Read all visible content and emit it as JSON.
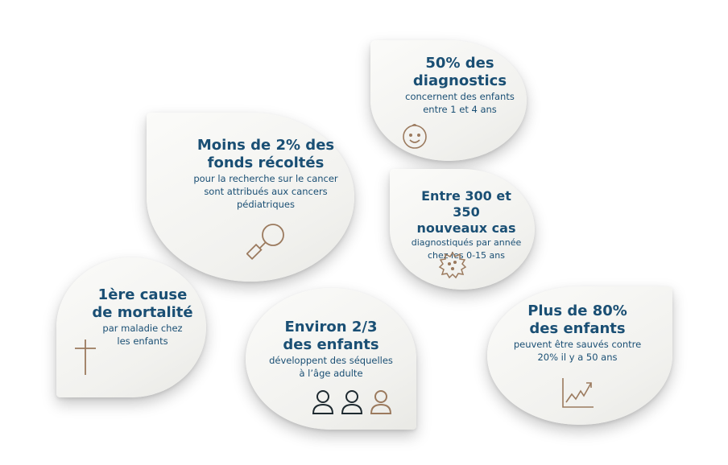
{
  "colors": {
    "title": "#1a4f74",
    "icon_brown": "#9b7a5e",
    "icon_dark": "#1e2a30"
  },
  "cards": [
    {
      "title_lines": [
        "50% des",
        "diagnostics"
      ],
      "sub_lines": [
        "concernent des enfants",
        "entre 1 et 4 ans"
      ],
      "icon": "smiley-icon"
    },
    {
      "title_lines": [
        "Moins de 2% des",
        "fonds récoltés"
      ],
      "sub_lines": [
        "pour la recherche sur le cancer",
        "sont attribués aux cancers",
        "pédiatriques"
      ],
      "icon": "magnifier-icon"
    },
    {
      "title_lines": [
        "Entre 300 et 350",
        "nouveaux cas"
      ],
      "sub_lines": [
        "diagnostiqués par année",
        "chez les 0-15 ans"
      ],
      "icon": "virus-icon"
    },
    {
      "title_lines": [
        "1ère cause",
        "de mortalité"
      ],
      "sub_lines": [
        "par maladie chez",
        "les enfants"
      ],
      "icon": "cross-icon"
    },
    {
      "title_lines": [
        "Environ 2/3",
        "des enfants"
      ],
      "sub_lines": [
        "développent des séquelles",
        "à l’âge adulte"
      ],
      "icon": "people-icon"
    },
    {
      "title_lines": [
        "Plus de 80%",
        "des enfants"
      ],
      "sub_lines": [
        "peuvent être sauvés contre",
        "20% il y a 50 ans"
      ],
      "icon": "rising-chart-icon"
    }
  ]
}
